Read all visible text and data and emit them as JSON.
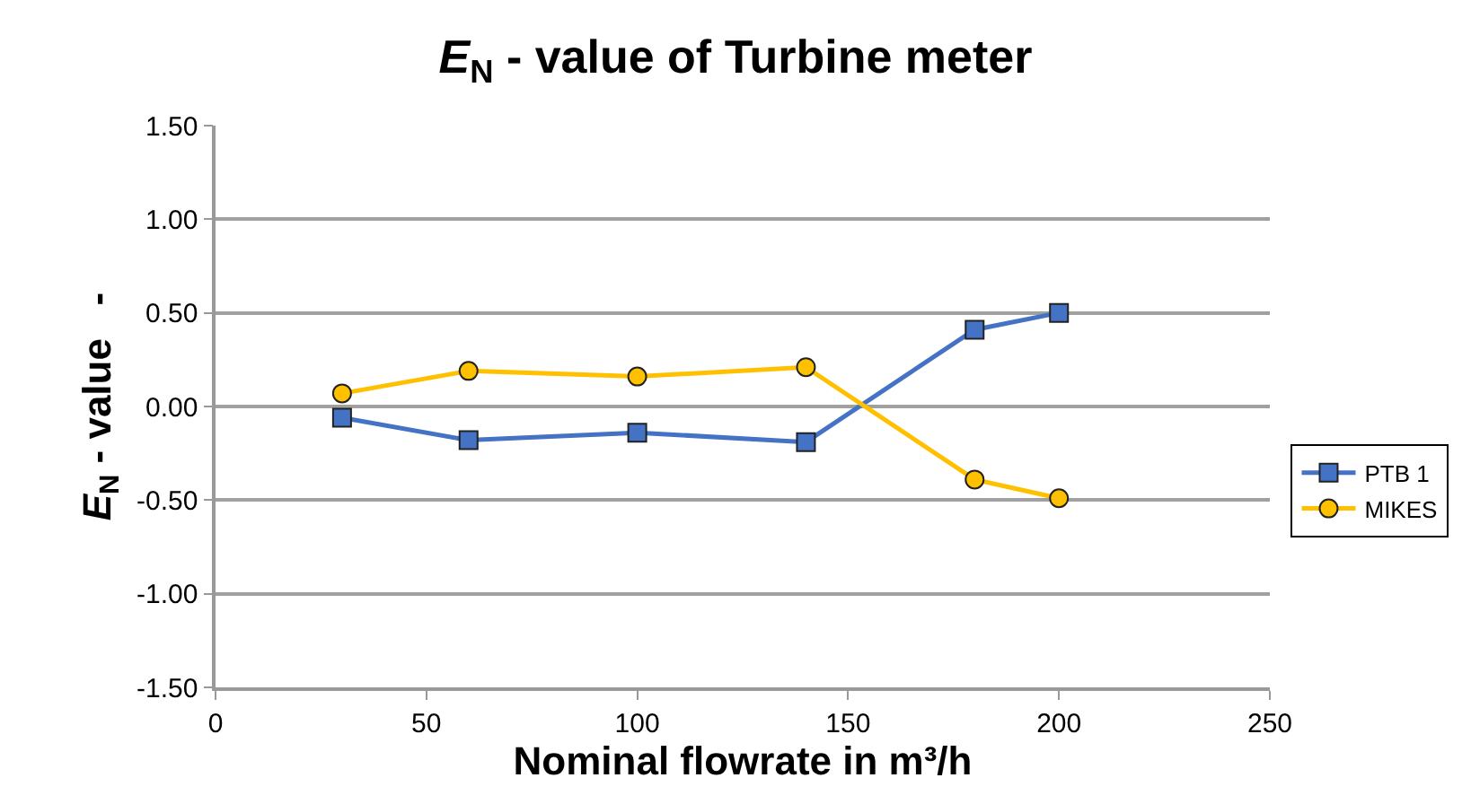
{
  "chart_data": {
    "type": "line",
    "title": "E$_{N}$ - value of Turbine meter",
    "xlabel": "Nominal flowrate in m³/h",
    "ylabel": "E$_{N}$ - value   -",
    "x": [
      30,
      60,
      100,
      140,
      180,
      200
    ],
    "series": [
      {
        "name": "PTB 1",
        "color": "#4472c4",
        "marker": "square",
        "values": [
          -0.06,
          -0.18,
          -0.14,
          -0.19,
          0.41,
          0.5
        ]
      },
      {
        "name": "MIKES",
        "color": "#ffc000",
        "marker": "circle",
        "values": [
          0.07,
          0.19,
          0.16,
          0.21,
          -0.39,
          -0.49
        ]
      }
    ],
    "xlim": [
      0,
      250
    ],
    "xticks": [
      0,
      50,
      100,
      150,
      200,
      250
    ],
    "ylim": [
      -1.5,
      1.5
    ],
    "yticks": [
      {
        "value": -1.5,
        "label": "-1.50"
      },
      {
        "value": -1.0,
        "label": "-1.00"
      },
      {
        "value": -0.5,
        "label": "-0.50"
      },
      {
        "value": 0,
        "label": "0.00"
      },
      {
        "value": 0.5,
        "label": "0.50"
      },
      {
        "value": 1.0,
        "label": "1.00"
      },
      {
        "value": 1.5,
        "label": "1.50"
      }
    ],
    "grid": "y",
    "legend": "right"
  }
}
